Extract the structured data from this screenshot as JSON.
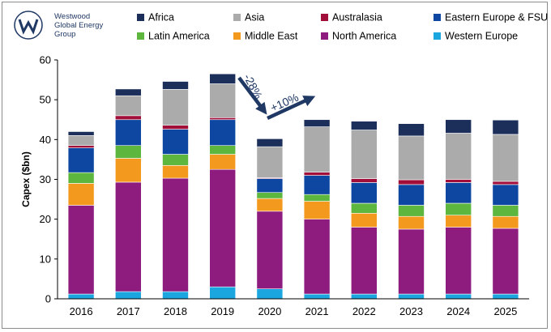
{
  "logo": {
    "line1": "Westwood",
    "line2": "Global Energy",
    "line3": "Group",
    "brand_color": "#1f3864"
  },
  "annotations": {
    "decline": "-28%",
    "increase": "+10%",
    "arrow_color": "#1f3864"
  },
  "chart_data": {
    "type": "bar",
    "stacked": true,
    "categories": [
      "2016",
      "2017",
      "2018",
      "2019",
      "2020",
      "2021",
      "2022",
      "2023",
      "2024",
      "2025"
    ],
    "ylabel": "Capex ($bn)",
    "ylim": [
      0,
      60
    ],
    "yticks": [
      0,
      10,
      20,
      30,
      40,
      50,
      60
    ],
    "grid": false,
    "legend_position": "top",
    "legend_order": [
      "Africa",
      "Asia",
      "Australasia",
      "Eastern Europe & FSU",
      "Latin America",
      "Middle East",
      "North America",
      "Western Europe"
    ],
    "series": [
      {
        "name": "Western Europe",
        "color": "#1ba6e0",
        "values": [
          1.2,
          1.8,
          1.8,
          3.0,
          2.5,
          1.2,
          1.2,
          1.2,
          1.2,
          1.2
        ]
      },
      {
        "name": "North America",
        "color": "#8e1b7e",
        "values": [
          22.3,
          27.5,
          28.5,
          29.5,
          19.5,
          18.8,
          16.8,
          16.3,
          16.8,
          16.5
        ]
      },
      {
        "name": "Middle East",
        "color": "#f39a1e",
        "values": [
          5.5,
          6.0,
          3.2,
          3.8,
          3.2,
          4.5,
          3.5,
          3.2,
          3.0,
          3.0
        ]
      },
      {
        "name": "Latin America",
        "color": "#5db63e",
        "values": [
          2.7,
          3.2,
          2.8,
          2.2,
          1.5,
          1.7,
          2.5,
          2.8,
          3.0,
          2.8
        ]
      },
      {
        "name": "Eastern Europe & FSU",
        "color": "#0d47a1",
        "values": [
          6.2,
          6.5,
          6.3,
          6.5,
          3.5,
          4.8,
          5.2,
          5.2,
          5.2,
          5.2
        ]
      },
      {
        "name": "Australasia",
        "color": "#a10e3a",
        "values": [
          0.6,
          1.0,
          1.0,
          0.5,
          0.2,
          0.8,
          1.0,
          1.2,
          0.8,
          0.8
        ]
      },
      {
        "name": "Asia",
        "color": "#ababab",
        "values": [
          2.5,
          5.0,
          9.0,
          8.5,
          7.8,
          11.4,
          12.2,
          11.0,
          11.6,
          11.8
        ]
      },
      {
        "name": "Africa",
        "color": "#1c2f5a",
        "values": [
          1.0,
          1.7,
          2.0,
          2.5,
          2.0,
          1.8,
          2.2,
          3.1,
          3.4,
          3.6
        ]
      }
    ]
  }
}
